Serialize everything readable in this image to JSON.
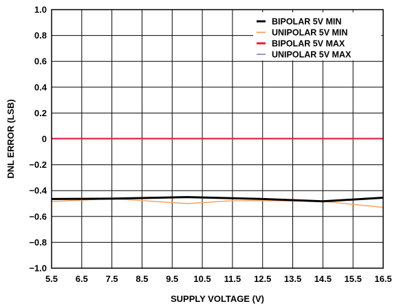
{
  "chart_data": {
    "type": "line",
    "title": "",
    "xlabel": "SUPPLY VOLTAGE (V)",
    "ylabel": "DNL ERROR (LSB)",
    "xlim": [
      5.5,
      16.5
    ],
    "ylim": [
      -1.0,
      1.0
    ],
    "x_ticks": [
      "5.5",
      "6.5",
      "7.5",
      "8.5",
      "9.5",
      "10.5",
      "11.5",
      "12.5",
      "13.5",
      "14.5",
      "15.5",
      "16.5"
    ],
    "y_ticks": [
      "1.0",
      "0.8",
      "0.6",
      "0.4",
      "0.2",
      "0",
      "−0.2",
      "−0.4",
      "−0.6",
      "−0.8",
      "−1.0"
    ],
    "grid": true,
    "legend_position": "top-right",
    "series": [
      {
        "name": "BIPOLAR 5V MIN",
        "color": "#000000",
        "x": [
          5.5,
          7.5,
          10.0,
          12.5,
          14.5,
          16.5
        ],
        "y": [
          -0.465,
          -0.462,
          -0.45,
          -0.465,
          -0.483,
          -0.455
        ]
      },
      {
        "name": "UNIPOLAR 5V MIN",
        "color": "#f4a460",
        "x": [
          5.5,
          7.5,
          10.0,
          11.5,
          12.5,
          14.5,
          16.5
        ],
        "y": [
          -0.485,
          -0.462,
          -0.5,
          -0.478,
          -0.478,
          -0.482,
          -0.53
        ]
      },
      {
        "name": "BIPOLAR 5V MAX",
        "color": "#e31b3b",
        "x": [
          5.5,
          16.5
        ],
        "y": [
          0.003,
          0.003
        ]
      },
      {
        "name": "UNIPOLAR 5V MAX",
        "color": "#7b93b8",
        "x": [
          5.5,
          16.5
        ],
        "y": [
          0.0,
          0.0
        ]
      }
    ]
  }
}
